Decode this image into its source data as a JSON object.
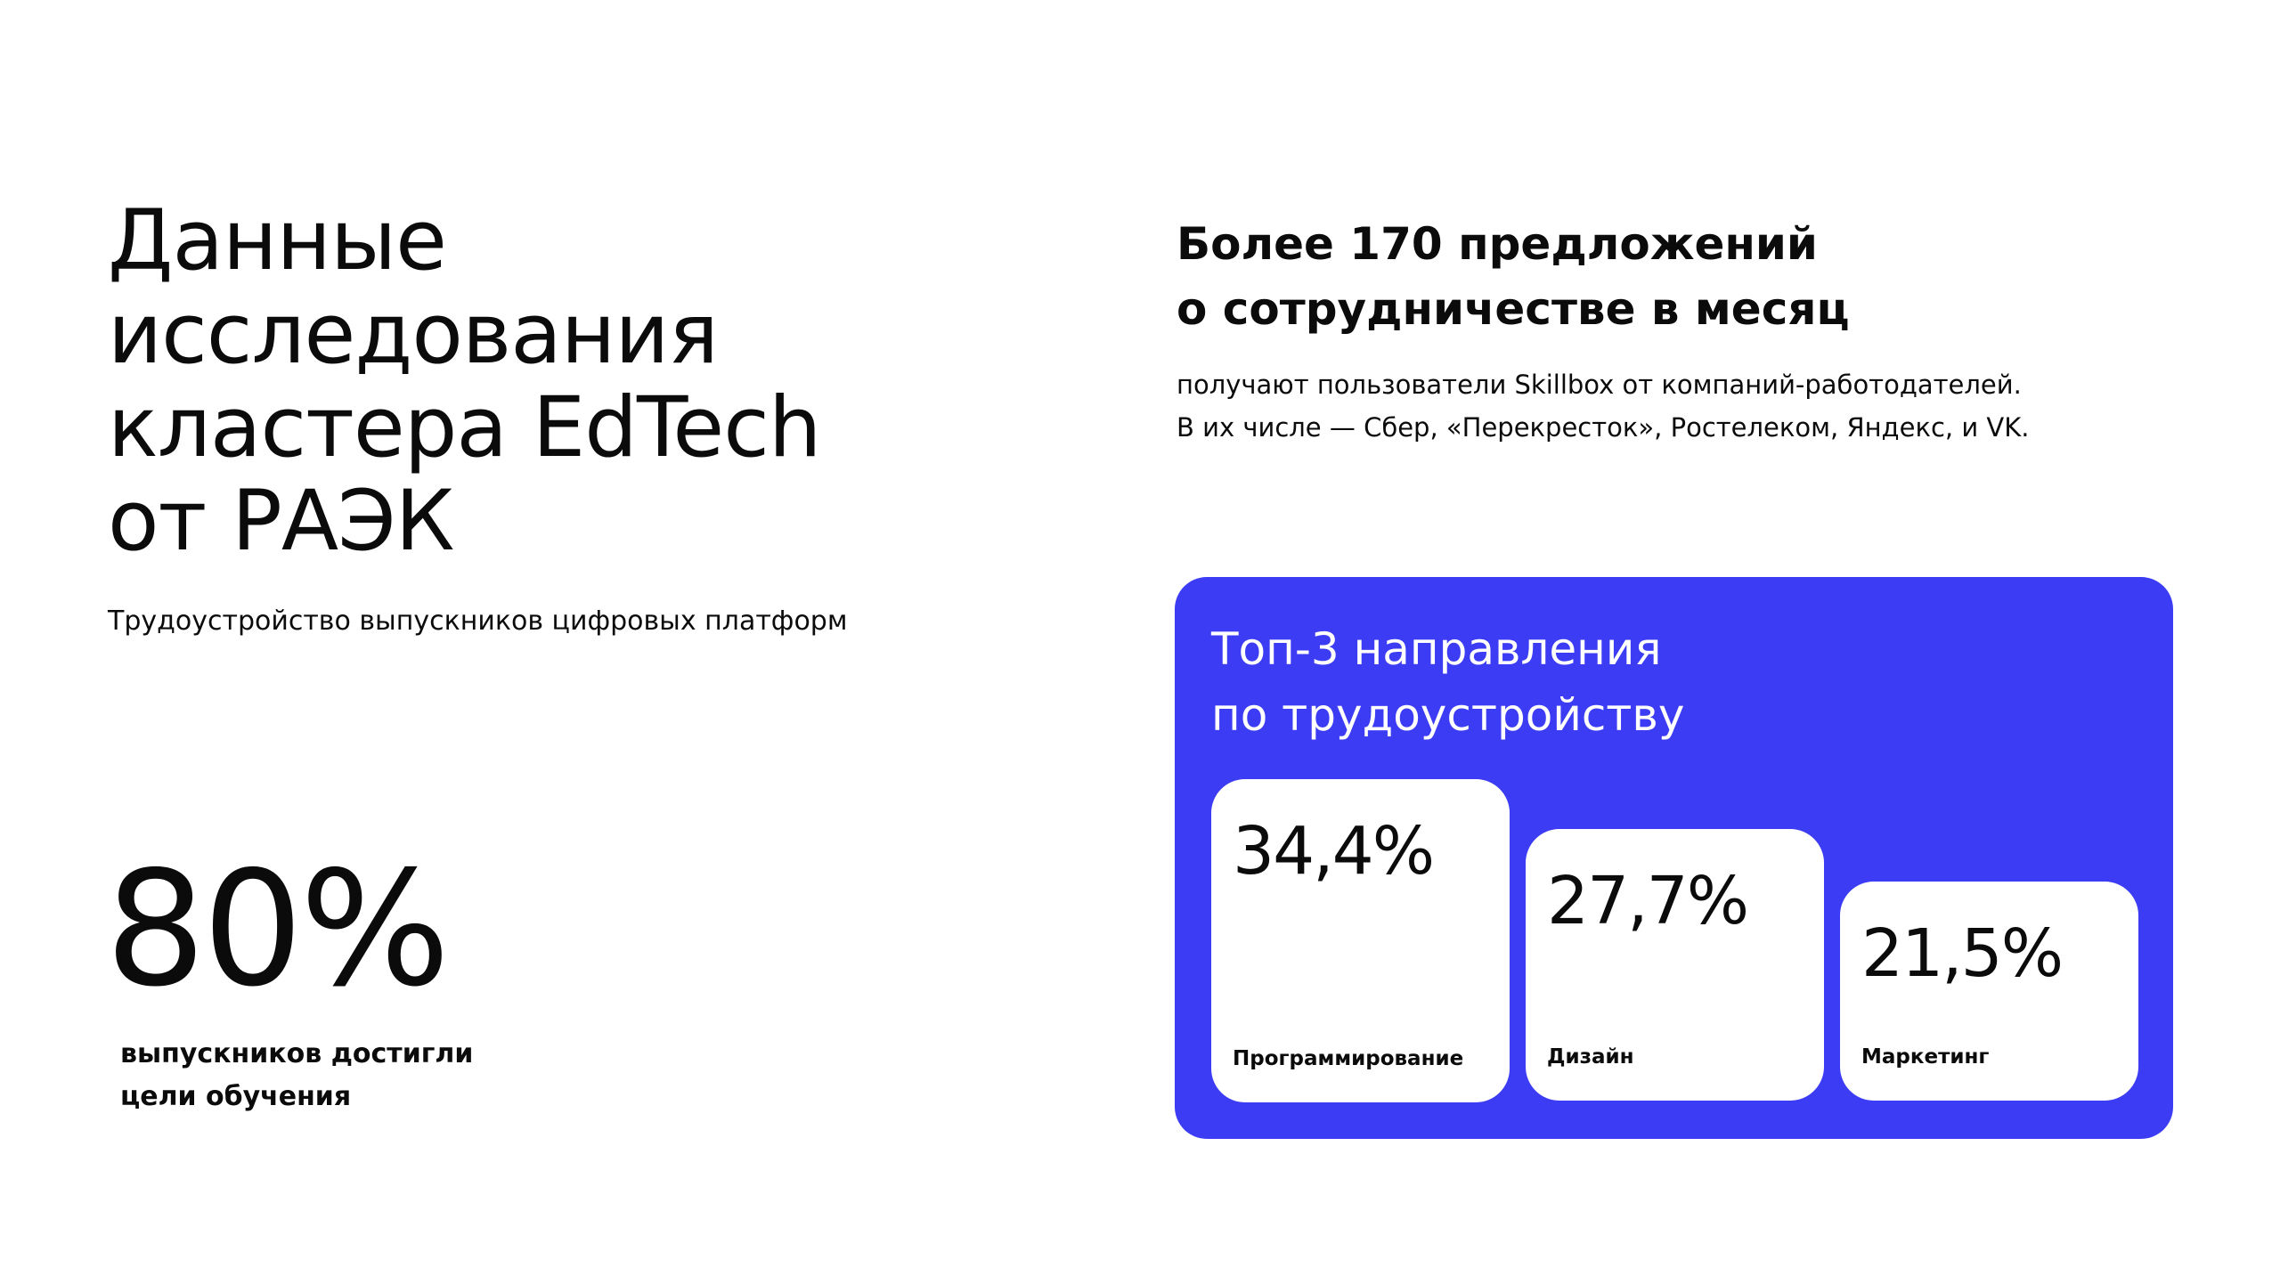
{
  "left": {
    "title": [
      "Данные",
      "исследования",
      "кластера EdTech",
      "от РАЭК"
    ],
    "subtitle": "Трудоустройство выпускников цифровых платформ",
    "stat": {
      "value": "80%",
      "caption": [
        "выпускников достигли",
        "цели обучения"
      ]
    }
  },
  "right": {
    "heading": [
      "Более 170 предложений",
      "о сотрудничестве в месяц"
    ],
    "description": [
      "получают пользователи Skillbox от компаний-работодателей.",
      "В их числе — Сбер, «Перекресток», Ростелеком, Яндекс, и VK."
    ],
    "card": {
      "title": [
        "Топ-3 направления",
        "по трудоустройству"
      ],
      "items": [
        {
          "value": "34,4%",
          "label": "Программирование"
        },
        {
          "value": "27,7%",
          "label": "Дизайн"
        },
        {
          "value": "21,5%",
          "label": "Маркетинг"
        }
      ]
    }
  }
}
